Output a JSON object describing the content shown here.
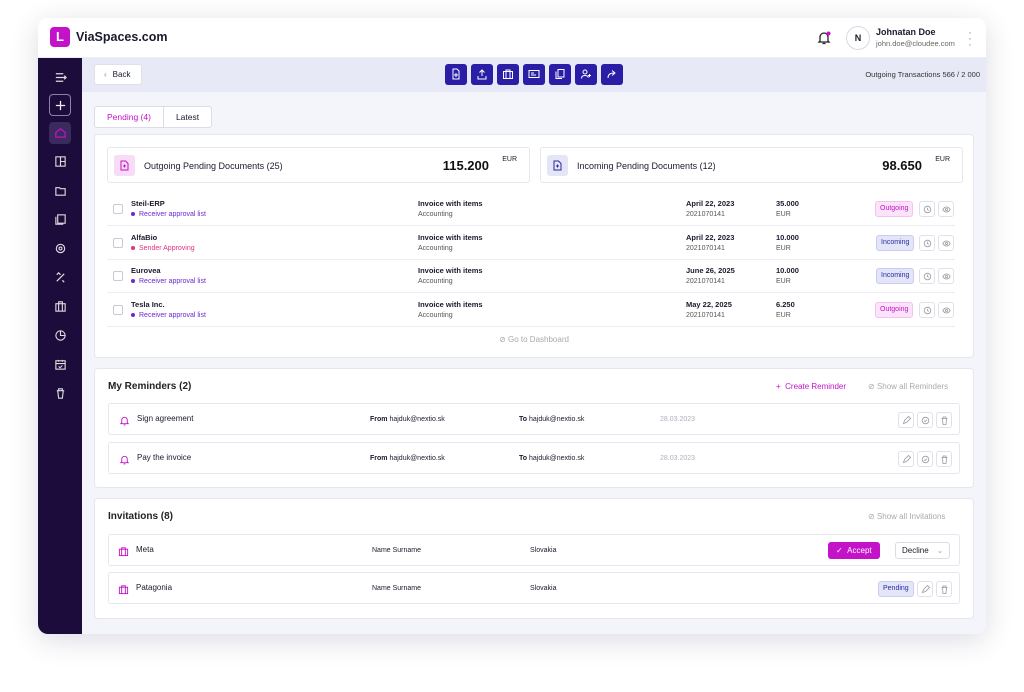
{
  "app": {
    "brand": "ViaSpaces.com",
    "logo_letter": "L"
  },
  "user": {
    "initial": "N",
    "name": "Johnatan Doe",
    "email": "john.doe@cloudee.com"
  },
  "toolbar": {
    "back_label": "Back",
    "transactions": "Outgoing Transactions 566 / 2 000"
  },
  "tabs": [
    {
      "label": "Pending (4)"
    },
    {
      "label": "Latest"
    }
  ],
  "summary": {
    "outgoing": {
      "label": "Outgoing Pending Documents (25)",
      "amount": "115.200",
      "currency": "EUR"
    },
    "incoming": {
      "label": "Incoming Pending Documents (12)",
      "amount": "98.650",
      "currency": "EUR"
    }
  },
  "documents": [
    {
      "company": "Steil-ERP",
      "status": "Receiver approval list",
      "status_color": "#6a2ad0",
      "type": "Invoice with items",
      "dept": "Accounting",
      "date": "April 22, 2023",
      "ref": "2021070141",
      "amount": "35.000",
      "currency": "EUR",
      "direction": "Outgoing"
    },
    {
      "company": "AlfaBio",
      "status": "Sender Approving",
      "status_color": "#e0337a",
      "type": "Invoice with items",
      "dept": "Accounting",
      "date": "April 22, 2023",
      "ref": "2021070141",
      "amount": "10.000",
      "currency": "EUR",
      "direction": "Incoming"
    },
    {
      "company": "Eurovea",
      "status": "Receiver approval list",
      "status_color": "#6a2ad0",
      "type": "Invoice with items",
      "dept": "Accounting",
      "date": "June 26, 2025",
      "ref": "2021070141",
      "amount": "10.000",
      "currency": "EUR",
      "direction": "Incoming"
    },
    {
      "company": "Tesla Inc.",
      "status": "Receiver approval list",
      "status_color": "#6a2ad0",
      "type": "Invoice with items",
      "dept": "Accounting",
      "date": "May 22, 2025",
      "ref": "2021070141",
      "amount": "6.250",
      "currency": "EUR",
      "direction": "Outgoing"
    }
  ],
  "goto_dashboard": "Go to Dashboard",
  "reminders": {
    "title": "My Reminders (2)",
    "create": "Create Reminder",
    "show_all": "Show all Reminders",
    "items": [
      {
        "title": "Sign agreement",
        "from_label": "From",
        "from": "hajduk@nextio.sk",
        "to_label": "To",
        "to": "hajduk@nextio.sk",
        "date": "28.03.2023"
      },
      {
        "title": "Pay the invoice",
        "from_label": "From",
        "from": "hajduk@nextio.sk",
        "to_label": "To",
        "to": "hajduk@nextio.sk",
        "date": "28.03.2023"
      }
    ]
  },
  "invitations": {
    "title": "Invitations (8)",
    "show_all": "Show all Invitations",
    "items": [
      {
        "company": "Meta",
        "person": "Name Surname",
        "country": "Slovakia",
        "accept": "Accept",
        "decline": "Decline"
      },
      {
        "company": "Patagonia",
        "person": "Name Surname",
        "country": "Slovakia",
        "status": "Pending"
      }
    ]
  },
  "colors": {
    "accent": "#c412c9",
    "sidebar": "#1c0c3c",
    "toolbar_button": "#2a1ea6"
  }
}
